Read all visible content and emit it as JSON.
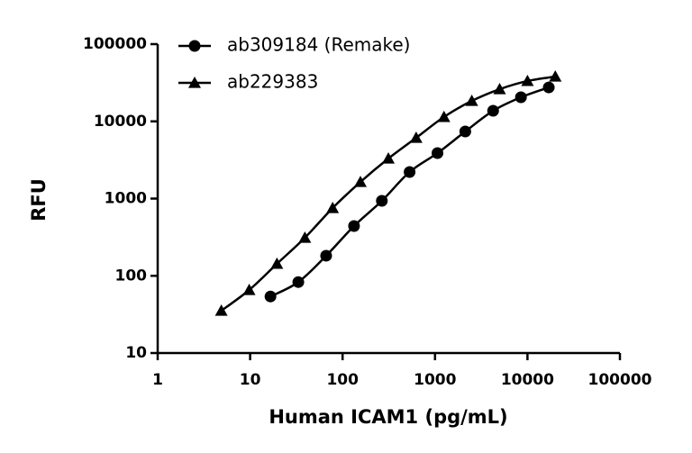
{
  "chart_data": {
    "type": "scatter",
    "x_label": "Human ICAM1 (pg/mL)",
    "y_label": "RFU",
    "xscale": "log",
    "yscale": "log",
    "xlim": [
      1,
      100000
    ],
    "ylim": [
      10,
      100000
    ],
    "xticks": [
      1,
      10,
      100,
      1000,
      10000,
      100000
    ],
    "yticks": [
      10,
      100,
      1000,
      10000,
      100000
    ],
    "legend": "upper left",
    "series": [
      {
        "name": "ab309184 (Remake)",
        "color": "#000000",
        "marker": "circle",
        "x": [
          16.6,
          33.2,
          66.4,
          133,
          266,
          531,
          1063,
          2125,
          4250,
          8500,
          17000
        ],
        "values": [
          54,
          83,
          182,
          441,
          935,
          2210,
          3880,
          7390,
          13700,
          20500,
          27500
        ]
      },
      {
        "name": "ab229383",
        "color": "#000000",
        "marker": "triangle",
        "x": [
          4.88,
          9.77,
          19.5,
          39.1,
          78.1,
          156,
          313,
          625,
          1250,
          2500,
          5000,
          10000,
          20000
        ],
        "values": [
          35.3,
          65.5,
          143,
          311,
          755,
          1640,
          3300,
          6120,
          11400,
          18400,
          26100,
          33300,
          38000
        ]
      }
    ]
  }
}
